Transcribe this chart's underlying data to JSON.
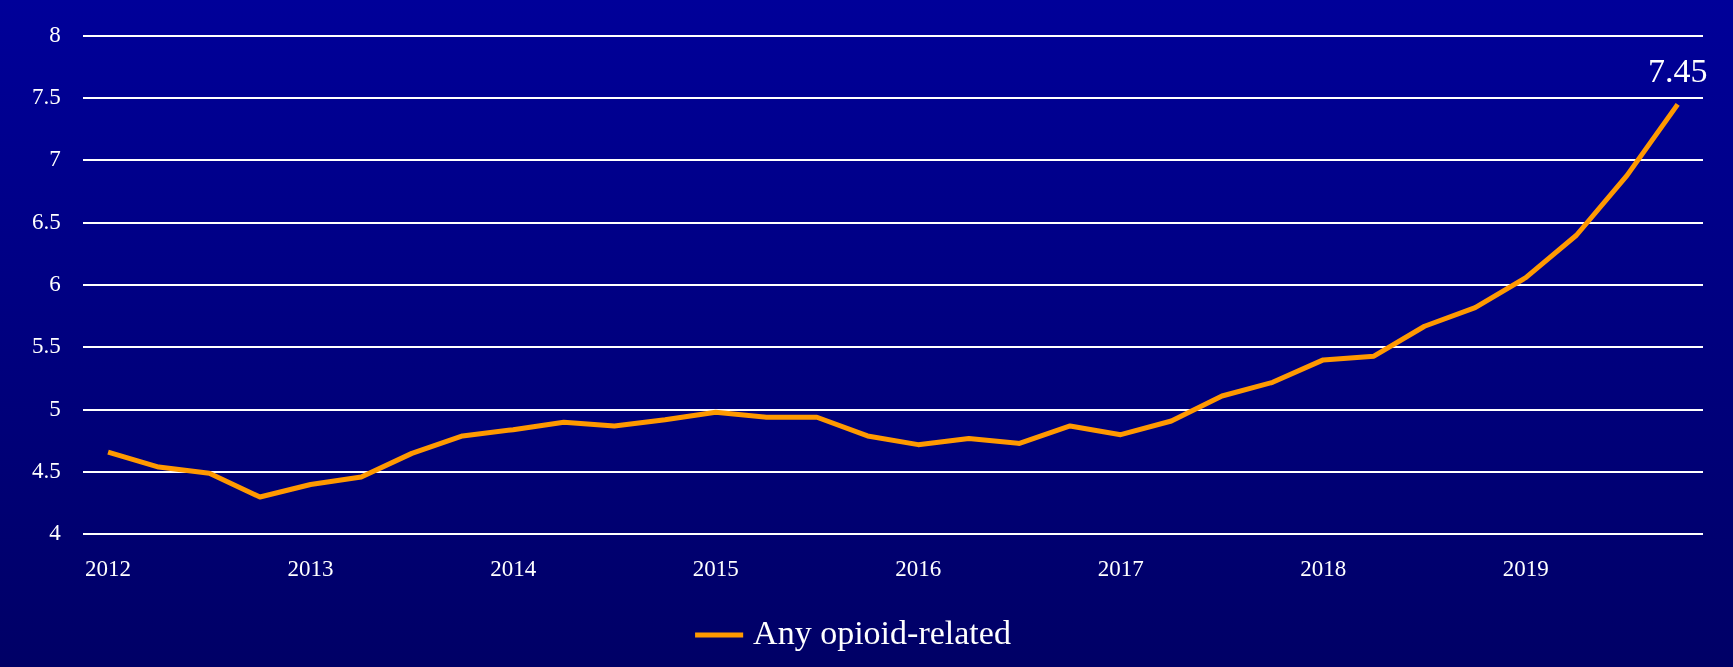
{
  "chart_data": {
    "type": "line",
    "categories": [
      "2012",
      null,
      null,
      null,
      "2013",
      null,
      null,
      null,
      "2014",
      null,
      null,
      null,
      "2015",
      null,
      null,
      null,
      "2016",
      null,
      null,
      null,
      "2017",
      null,
      null,
      null,
      "2018",
      null,
      null,
      null,
      "2019",
      null,
      null,
      null
    ],
    "series": [
      {
        "name": "Any opioid-related",
        "color": "#ff9900",
        "values": [
          4.66,
          4.54,
          4.49,
          4.3,
          4.4,
          4.46,
          4.65,
          4.79,
          4.84,
          4.9,
          4.87,
          4.92,
          4.98,
          4.94,
          4.94,
          4.79,
          4.72,
          4.77,
          4.73,
          4.87,
          4.8,
          4.91,
          5.11,
          5.22,
          5.4,
          5.43,
          5.67,
          5.82,
          6.06,
          6.4,
          6.88,
          7.45
        ],
        "value_labels": [
          null,
          null,
          null,
          null,
          null,
          null,
          null,
          null,
          null,
          null,
          null,
          null,
          null,
          null,
          null,
          null,
          null,
          null,
          null,
          null,
          null,
          null,
          null,
          null,
          null,
          null,
          null,
          null,
          null,
          null,
          null,
          "7.45"
        ]
      }
    ],
    "ylim": [
      4,
      8
    ],
    "yticks": [
      4,
      4.5,
      5,
      5.5,
      6,
      6.5,
      7,
      7.5,
      8
    ],
    "grid": "y",
    "legend": "bottom",
    "marker": "none",
    "line_style": "solid"
  }
}
